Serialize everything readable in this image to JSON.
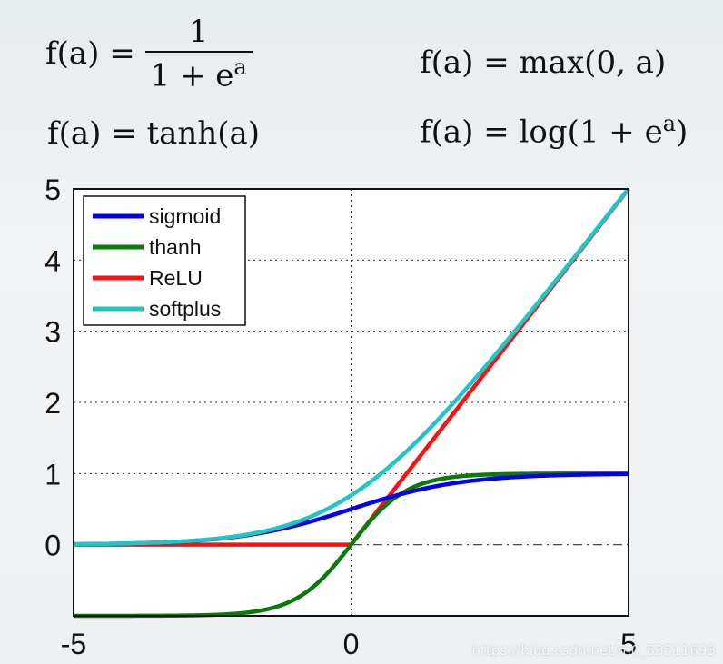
{
  "formulas": {
    "sigmoid": {
      "lhs": "f(a) =",
      "num": "1",
      "den": "1 + e",
      "exp": "a"
    },
    "tanh": "f(a) = tanh(a)",
    "relu": "f(a) = max(0, a)",
    "softplus": {
      "text": "f(a) = log(1 + e",
      "exp": "a",
      "close": ")"
    }
  },
  "watermark": "https://blog.csdn.net/m0_53511693",
  "chart_data": {
    "type": "line",
    "xlim": [
      -5,
      5
    ],
    "ylim": [
      -1,
      5
    ],
    "x_ticks": [
      "-5",
      "0",
      "5"
    ],
    "y_ticks": [
      "0",
      "1",
      "2",
      "3",
      "4",
      "5"
    ],
    "grid": "dotted",
    "legend_position": "top-left",
    "series": [
      {
        "name": "sigmoid",
        "color": "#0000ee",
        "function": "sigmoid"
      },
      {
        "name": "thanh",
        "color": "#0a7a0a",
        "function": "tanh"
      },
      {
        "name": "ReLU",
        "color": "#ff1010",
        "function": "relu"
      },
      {
        "name": "softplus",
        "color": "#1fc6c6",
        "function": "softplus"
      }
    ],
    "sample_x": [
      -5,
      -4,
      -3,
      -2,
      -1,
      0,
      1,
      2,
      3,
      4,
      5
    ],
    "sample_values": {
      "sigmoid": [
        0.007,
        0.018,
        0.047,
        0.119,
        0.269,
        0.5,
        0.731,
        0.881,
        0.953,
        0.982,
        0.993
      ],
      "thanh": [
        -1.0,
        -0.999,
        -0.995,
        -0.964,
        -0.762,
        0,
        0.762,
        0.964,
        0.995,
        0.999,
        1.0
      ],
      "ReLU": [
        0,
        0,
        0,
        0,
        0,
        0,
        1,
        2,
        3,
        4,
        5
      ],
      "softplus": [
        0.007,
        0.018,
        0.049,
        0.127,
        0.313,
        0.693,
        1.313,
        2.127,
        3.049,
        4.018,
        5.007
      ]
    }
  }
}
